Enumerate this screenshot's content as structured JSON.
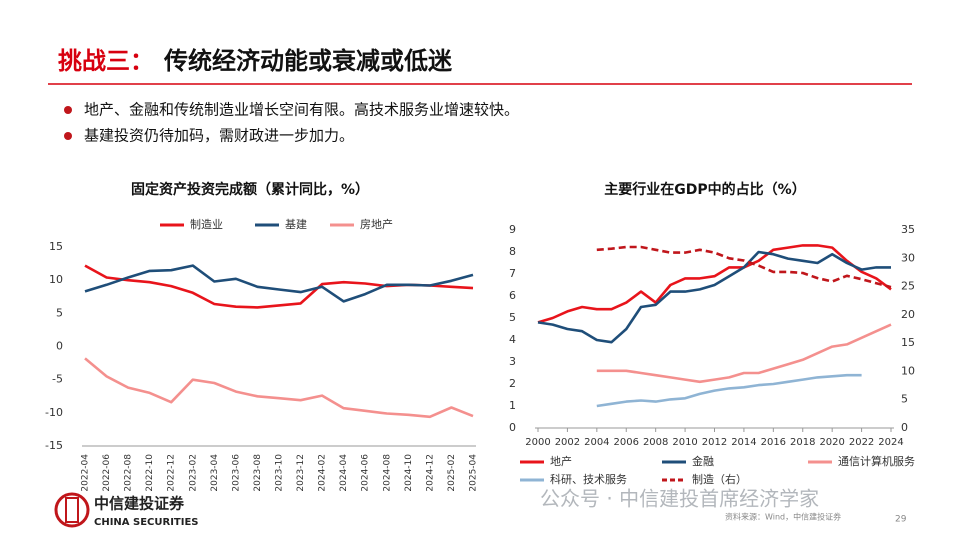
{
  "header": {
    "highlight": "挑战三：",
    "title": "传统经济动能或衰减或低迷"
  },
  "bullets": [
    "地产、金融和传统制造业增长空间有限。高技术服务业增速较快。",
    "基建投资仍待加码，需财政进一步加力。"
  ],
  "chart_data": [
    {
      "type": "line",
      "title": "固定资产投资完成额（累计同比，%）",
      "categories": [
        "2022-04",
        "2022-06",
        "2022-08",
        "2022-10",
        "2022-12",
        "2023-02",
        "2023-04",
        "2023-06",
        "2023-08",
        "2023-10",
        "2023-12",
        "2024-02",
        "2024-04",
        "2024-06",
        "2024-08",
        "2024-10",
        "2024-12",
        "2025-02",
        "2025-04"
      ],
      "ylim": [
        -15,
        15
      ],
      "yticks": [
        -15,
        -10,
        -5,
        0,
        5,
        10,
        15
      ],
      "grid": false,
      "legend": "top",
      "series": [
        {
          "name": "制造业",
          "color": "#e8141b",
          "values": [
            12.2,
            10.4,
            10.0,
            9.7,
            9.1,
            8.1,
            6.4,
            6.0,
            5.9,
            6.2,
            6.5,
            9.4,
            9.7,
            9.5,
            9.1,
            9.3,
            9.2,
            9.0,
            8.8
          ]
        },
        {
          "name": "基建",
          "color": "#1f4e79",
          "values": [
            8.3,
            9.3,
            10.4,
            11.4,
            11.5,
            12.2,
            9.8,
            10.2,
            9.0,
            8.6,
            8.2,
            9.0,
            6.8,
            7.9,
            9.3,
            9.3,
            9.2,
            9.9,
            10.8
          ]
        },
        {
          "name": "房地产",
          "color": "#f4908e",
          "values": [
            -1.8,
            -4.5,
            -6.2,
            -7.0,
            -8.4,
            -5.0,
            -5.5,
            -6.8,
            -7.5,
            -7.8,
            -8.1,
            -7.4,
            -9.3,
            -9.7,
            -10.1,
            -10.3,
            -10.6,
            -9.2,
            -10.5
          ]
        }
      ]
    },
    {
      "type": "line",
      "title": "主要行业在GDP中的占比（%）",
      "x": [
        2000,
        2001,
        2002,
        2003,
        2004,
        2005,
        2006,
        2007,
        2008,
        2009,
        2010,
        2011,
        2012,
        2013,
        2014,
        2015,
        2016,
        2017,
        2018,
        2019,
        2020,
        2021,
        2022,
        2023,
        2024
      ],
      "xlim": [
        2000,
        2024
      ],
      "xticks": [
        2000,
        2002,
        2004,
        2006,
        2008,
        2010,
        2012,
        2014,
        2016,
        2018,
        2020,
        2022,
        2024
      ],
      "ylim": [
        0,
        9
      ],
      "yticks": [
        0,
        1,
        2,
        3,
        4,
        5,
        6,
        7,
        8,
        9
      ],
      "y2lim": [
        0,
        35
      ],
      "y2ticks": [
        0,
        5,
        10,
        15,
        20,
        25,
        30,
        35
      ],
      "grid": false,
      "legend": "bottom",
      "series": [
        {
          "name": "地产",
          "color": "#e8141b",
          "values": [
            4.8,
            5.0,
            5.3,
            5.5,
            5.4,
            5.4,
            5.7,
            6.2,
            5.7,
            6.5,
            6.8,
            6.8,
            6.9,
            7.3,
            7.3,
            7.6,
            8.1,
            8.2,
            8.3,
            8.3,
            8.2,
            7.6,
            7.1,
            6.8,
            6.3
          ]
        },
        {
          "name": "金融",
          "color": "#1f4e79",
          "values": [
            4.8,
            4.7,
            4.5,
            4.4,
            4.0,
            3.9,
            4.5,
            5.5,
            5.6,
            6.2,
            6.2,
            6.3,
            6.5,
            6.9,
            7.3,
            8.0,
            7.9,
            7.7,
            7.6,
            7.5,
            7.9,
            7.5,
            7.2,
            7.3,
            7.3
          ]
        },
        {
          "name": "通信计算机服务",
          "color": "#f4908e",
          "values": [
            null,
            null,
            null,
            null,
            2.6,
            2.6,
            2.6,
            2.5,
            2.4,
            2.3,
            2.2,
            2.1,
            2.2,
            2.3,
            2.5,
            2.5,
            2.7,
            2.9,
            3.1,
            3.4,
            3.7,
            3.8,
            4.1,
            4.4,
            4.7
          ]
        },
        {
          "name": "科研、技术服务",
          "color": "#8fb4d4",
          "values": [
            null,
            null,
            null,
            null,
            1.0,
            1.1,
            1.2,
            1.25,
            1.2,
            1.3,
            1.35,
            1.55,
            1.7,
            1.8,
            1.85,
            1.95,
            2.0,
            2.1,
            2.2,
            2.3,
            2.35,
            2.4,
            2.4,
            null,
            null
          ]
        },
        {
          "name": "制造（右）",
          "color": "#c0161b",
          "axis": "y2",
          "dash": true,
          "values": [
            null,
            null,
            null,
            null,
            31.5,
            31.7,
            32.0,
            32.0,
            31.5,
            31.0,
            31.0,
            31.5,
            31.0,
            30.0,
            29.6,
            28.7,
            27.6,
            27.6,
            27.4,
            26.5,
            25.9,
            26.9,
            26.3,
            25.6,
            24.9
          ]
        }
      ]
    }
  ],
  "footer": {
    "logo": "中信建投证券",
    "logo_en": "CHINA SECURITIES",
    "watermark": "公众号 · 中信建投首席经济学家",
    "source": "资料来源：Wind，中信建投证券",
    "page": "29"
  }
}
